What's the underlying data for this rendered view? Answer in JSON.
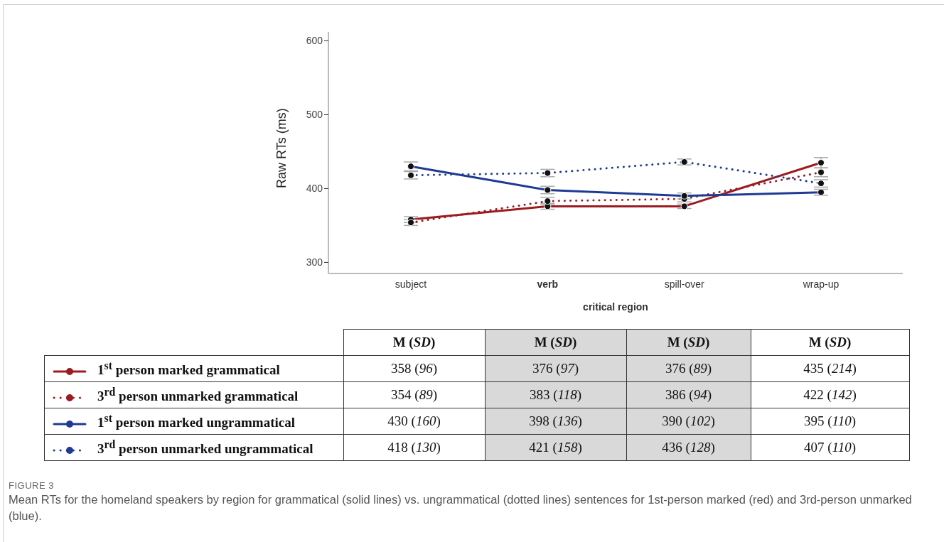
{
  "chart_data": {
    "type": "line",
    "xlabel": "critical region",
    "ylabel": "Raw RTs (ms)",
    "categories": [
      "subject",
      "verb",
      "spill-over",
      "wrap-up"
    ],
    "ylim": [
      285,
      612
    ],
    "yticks": [
      300,
      400,
      500,
      600
    ],
    "grid": false,
    "legend": "bottom",
    "marker": "circle",
    "series": [
      {
        "name": "1$^{st}$ person marked grammatical",
        "color": "#9b1c20",
        "line_style": "solid",
        "values": [
          358,
          376,
          376,
          435
        ],
        "errors": [
          4,
          4,
          3,
          7
        ],
        "value_labels": [
          "358 (96)",
          "376 (97)",
          "376 (89)",
          "435 (214)"
        ]
      },
      {
        "name": "3$^{rd}$ person unmarked grammatical",
        "color": "#9b1c20",
        "line_style": "dotted",
        "values": [
          354,
          383,
          386,
          422
        ],
        "errors": [
          4,
          5,
          4,
          6
        ],
        "value_labels": [
          "354 (89)",
          "383 (118)",
          "386 (94)",
          "422 (142)"
        ]
      },
      {
        "name": "1$^{st}$ person marked ungrammatical",
        "color": "#1f3a93",
        "line_style": "solid",
        "values": [
          430,
          398,
          390,
          395
        ],
        "errors": [
          6,
          5,
          4,
          4
        ],
        "value_labels": [
          "430 (160)",
          "398 (136)",
          "390 (102)",
          "395 (110)"
        ]
      },
      {
        "name": "3$^{rd}$ person unmarked ungrammatical",
        "color": "#1f3a93",
        "line_style": "dotted",
        "values": [
          418,
          421,
          436,
          407
        ],
        "errors": [
          5,
          5,
          4,
          5
        ],
        "value_labels": [
          "418 (130)",
          "421 (158)",
          "436 (128)",
          "407 (110)"
        ]
      }
    ],
    "annotations": [
      "M (SD)",
      "M (SD)",
      "M (SD)",
      "M (SD)",
      "FIGURE 3",
      "Mean RTs for the homeland speakers by region for grammatical (solid lines) vs. ungrammatical (dotted lines) sentences for 1st-person marked (red) and 3rd-person unmarked (blue)."
    ]
  }
}
